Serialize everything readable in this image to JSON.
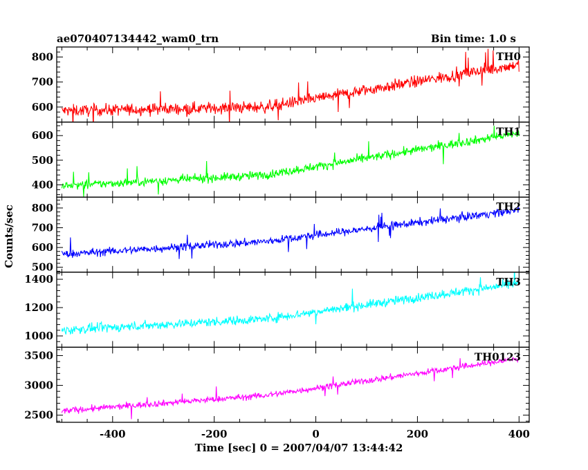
{
  "header": {
    "left_title": "ae070407134442_wam0_trn",
    "right_title": "Bin time: 1.0 s"
  },
  "axes": {
    "xlabel": "Time [sec] 0 = 2007/04/07 13:44:42",
    "ylabel": "Counts/sec"
  },
  "chart_data": {
    "type": "line",
    "title": "ae070407134442_wam0_trn",
    "subtitle": "Bin time: 1.0 s",
    "xlabel": "Time [sec] 0 = 2007/04/07 13:44:42",
    "ylabel": "Counts/sec",
    "xlim": [
      -510,
      420
    ],
    "x_range": [
      -500,
      400
    ],
    "x_step": 1,
    "x_ticks": [
      -400,
      -200,
      0,
      200,
      400
    ],
    "grid": false,
    "legend": "none",
    "series": [
      {
        "name": "TH0",
        "color": "#ff0000",
        "ylim": [
          540,
          840
        ],
        "y_ticks": [
          600,
          700,
          800
        ],
        "trend_start": 585,
        "trend_knee_x": -100,
        "trend_knee_y": 600,
        "trend_end": 770,
        "noise_amplitude": 40
      },
      {
        "name": "TH1",
        "color": "#00ff00",
        "ylim": [
          350,
          655
        ],
        "y_ticks": [
          400,
          500,
          600
        ],
        "trend_start": 395,
        "trend_knee_x": -100,
        "trend_knee_y": 440,
        "trend_end": 610,
        "noise_amplitude": 30
      },
      {
        "name": "TH2",
        "color": "#0000ff",
        "ylim": [
          475,
          855
        ],
        "y_ticks": [
          500,
          600,
          700,
          800
        ],
        "trend_start": 565,
        "trend_knee_x": -100,
        "trend_knee_y": 630,
        "trend_end": 790,
        "noise_amplitude": 35
      },
      {
        "name": "TH3",
        "color": "#00ffff",
        "ylim": [
          920,
          1450
        ],
        "y_ticks": [
          1000,
          1200,
          1400
        ],
        "trend_start": 1040,
        "trend_knee_x": -100,
        "trend_knee_y": 1120,
        "trend_end": 1370,
        "noise_amplitude": 55
      },
      {
        "name": "TH0123",
        "color": "#ff00ff",
        "ylim": [
          2380,
          3640
        ],
        "y_ticks": [
          2500,
          3000,
          3500
        ],
        "trend_start": 2570,
        "trend_knee_x": -100,
        "trend_knee_y": 2830,
        "trend_end": 3450,
        "noise_amplitude": 90
      }
    ]
  }
}
